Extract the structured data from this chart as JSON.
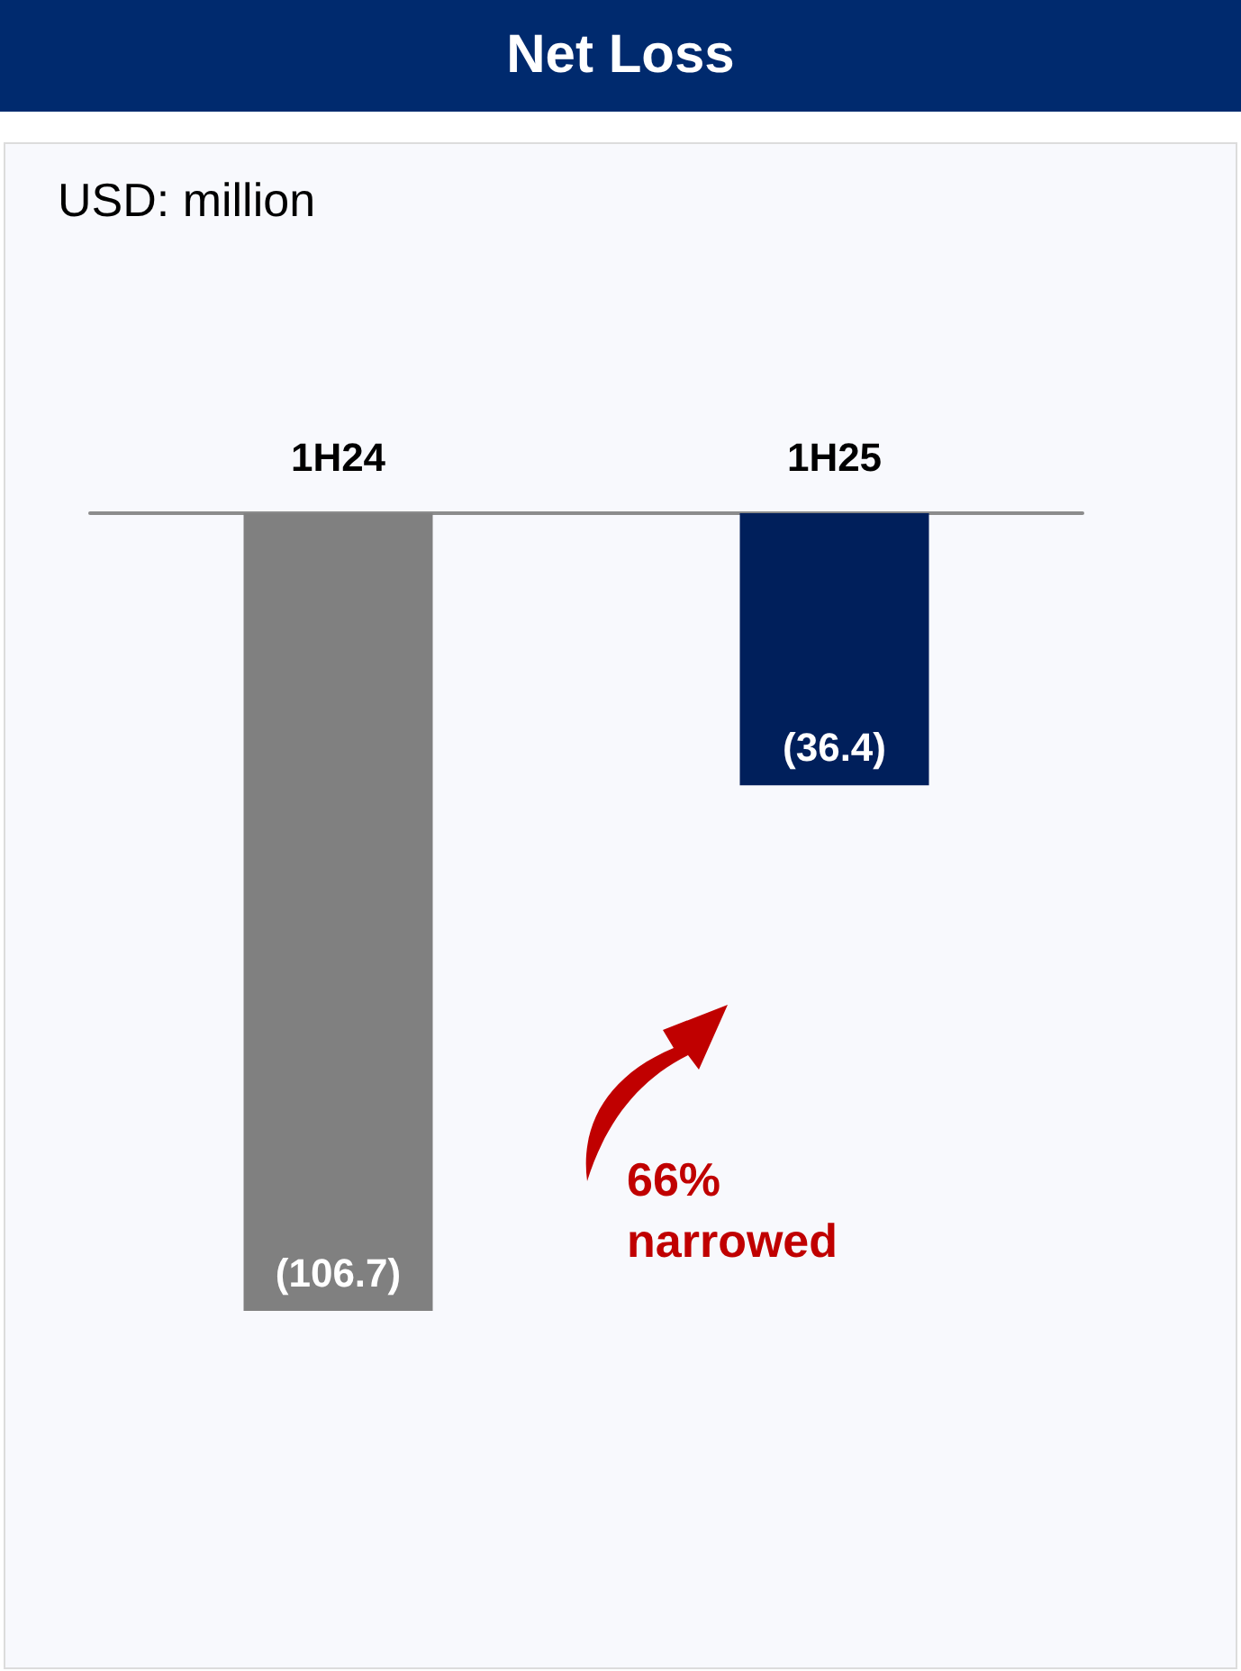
{
  "chart_data": {
    "type": "bar",
    "title": "Net Loss",
    "subtitle": "USD: million",
    "categories": [
      "1H24",
      "1H25"
    ],
    "values": [
      -106.7,
      -36.4
    ],
    "colors": [
      "#808080",
      "#001f5b"
    ],
    "value_labels": [
      "(106.7)",
      "(36.4)"
    ],
    "annotations": [
      "66% narrowed"
    ]
  }
}
